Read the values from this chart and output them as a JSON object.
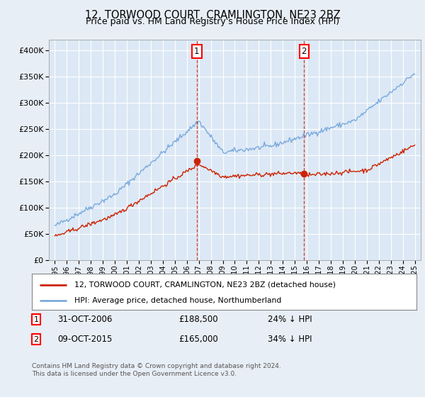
{
  "title": "12, TORWOOD COURT, CRAMLINGTON, NE23 2BZ",
  "subtitle": "Price paid vs. HM Land Registry's House Price Index (HPI)",
  "background_color": "#e8eef5",
  "plot_bg_color": "#dce8f5",
  "legend_line1": "12, TORWOOD COURT, CRAMLINGTON, NE23 2BZ (detached house)",
  "legend_line2": "HPI: Average price, detached house, Northumberland",
  "annotation1_label": "1",
  "annotation1_date": "31-OCT-2006",
  "annotation1_price": "£188,500",
  "annotation1_hpi": "24% ↓ HPI",
  "annotation2_label": "2",
  "annotation2_date": "09-OCT-2015",
  "annotation2_price": "£165,000",
  "annotation2_hpi": "34% ↓ HPI",
  "footnote": "Contains HM Land Registry data © Crown copyright and database right 2024.\nThis data is licensed under the Open Government Licence v3.0.",
  "vline1_x": 2006.83,
  "vline2_x": 2015.77,
  "sale1_x": 2006.83,
  "sale1_y": 188500,
  "sale2_x": 2015.77,
  "sale2_y": 165000,
  "ylim": [
    0,
    420000
  ],
  "xlim": [
    1994.5,
    2025.5
  ],
  "yticks": [
    0,
    50000,
    100000,
    150000,
    200000,
    250000,
    300000,
    350000,
    400000
  ],
  "ytick_labels": [
    "£0",
    "£50K",
    "£100K",
    "£150K",
    "£200K",
    "£250K",
    "£300K",
    "£350K",
    "£400K"
  ],
  "hpi_color": "#7aaadd",
  "sale_color": "#cc2200",
  "grid_color": "#ffffff",
  "vline_color": "#cc2200"
}
